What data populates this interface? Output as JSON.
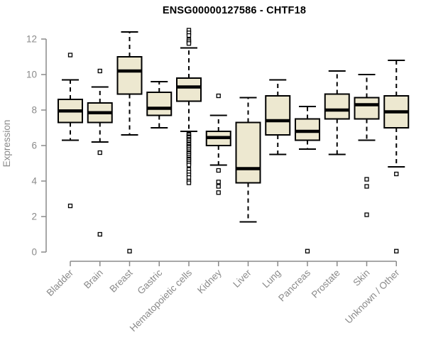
{
  "chart_data": {
    "type": "boxplot",
    "title": "ENSG00000127586 - CHTF18",
    "ylabel": "Expression",
    "ylim": [
      0,
      12
    ],
    "yticks": [
      0,
      2,
      4,
      6,
      8,
      10,
      12
    ],
    "grid": false,
    "legend": "none",
    "categories": [
      "Bladder",
      "Brain",
      "Breast",
      "Gastric",
      "Hematopoietic cells",
      "Kidney",
      "Liver",
      "Lung",
      "Pancreas",
      "Prostate",
      "Skin",
      "Unknown / Other"
    ],
    "boxes": [
      {
        "category": "Bladder",
        "low": 6.3,
        "q1": 7.3,
        "median": 7.95,
        "q3": 8.6,
        "high": 9.7,
        "outliers": [
          11.1,
          2.6
        ]
      },
      {
        "category": "Brain",
        "low": 6.2,
        "q1": 7.3,
        "median": 7.85,
        "q3": 8.4,
        "high": 9.3,
        "outliers": [
          10.2,
          5.6,
          1.0
        ]
      },
      {
        "category": "Breast",
        "low": 6.6,
        "q1": 8.9,
        "median": 10.2,
        "q3": 11.0,
        "high": 12.4,
        "outliers": [
          0.05
        ]
      },
      {
        "category": "Gastric",
        "low": 7.0,
        "q1": 7.7,
        "median": 8.1,
        "q3": 9.0,
        "high": 9.6,
        "outliers": []
      },
      {
        "category": "Hematopoietic cells",
        "low": 6.8,
        "q1": 8.5,
        "median": 9.3,
        "q3": 9.8,
        "high": 11.5,
        "outliers": [
          12.5,
          12.35,
          12.2,
          11.95,
          11.85,
          11.75,
          6.65,
          6.6,
          6.5,
          6.45,
          6.35,
          6.3,
          6.2,
          6.1,
          6.05,
          5.95,
          5.9,
          5.8,
          5.7,
          5.6,
          5.55,
          5.45,
          5.35,
          5.25,
          5.2,
          5.1,
          5.0,
          4.9,
          4.65,
          4.5,
          4.35,
          4.2,
          4.0,
          3.9
        ]
      },
      {
        "category": "Kidney",
        "low": 4.9,
        "q1": 6.0,
        "median": 6.45,
        "q3": 6.8,
        "high": 7.7,
        "outliers": [
          8.8,
          4.6,
          3.95,
          3.7,
          3.35
        ]
      },
      {
        "category": "Liver",
        "low": 1.7,
        "q1": 3.9,
        "median": 4.7,
        "q3": 7.3,
        "high": 8.7,
        "outliers": []
      },
      {
        "category": "Lung",
        "low": 5.5,
        "q1": 6.6,
        "median": 7.4,
        "q3": 8.8,
        "high": 9.7,
        "outliers": []
      },
      {
        "category": "Pancreas",
        "low": 5.8,
        "q1": 6.3,
        "median": 6.8,
        "q3": 7.5,
        "high": 8.2,
        "outliers": [
          0.05
        ]
      },
      {
        "category": "Prostate",
        "low": 5.5,
        "q1": 7.5,
        "median": 8.0,
        "q3": 8.9,
        "high": 10.2,
        "outliers": []
      },
      {
        "category": "Skin",
        "low": 6.3,
        "q1": 7.5,
        "median": 8.3,
        "q3": 8.7,
        "high": 10.0,
        "outliers": [
          4.1,
          3.7,
          2.1
        ]
      },
      {
        "category": "Unknown / Other",
        "low": 4.8,
        "q1": 7.0,
        "median": 7.9,
        "q3": 8.8,
        "high": 10.8,
        "outliers": [
          4.4,
          0.05
        ]
      }
    ],
    "colors": {
      "box_fill": "#ede8d0",
      "box_stroke": "#000000",
      "median": "#000000",
      "axis": "#8a8a8a",
      "tick_text": "#8a8a8a",
      "title_text": "#000000",
      "outlier_fill": "#ffffff"
    }
  }
}
